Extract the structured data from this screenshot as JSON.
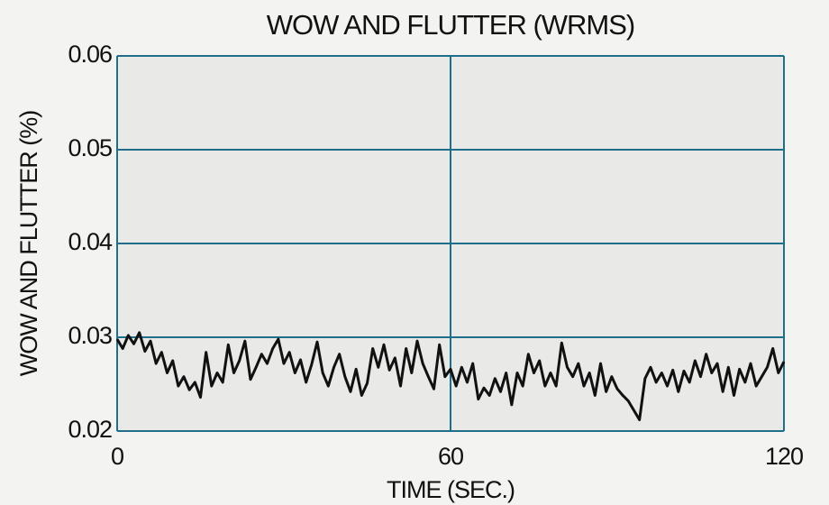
{
  "chart_data": {
    "type": "line",
    "title": "WOW AND FLUTTER (WRMS)",
    "xlabel": "TIME (SEC.)",
    "ylabel": "WOW AND FLUTTER (%)",
    "x": [
      0,
      1,
      2,
      3,
      4,
      5,
      6,
      7,
      8,
      9,
      10,
      11,
      12,
      13,
      14,
      15,
      16,
      17,
      18,
      19,
      20,
      21,
      22,
      23,
      24,
      25,
      26,
      27,
      28,
      29,
      30,
      31,
      32,
      33,
      34,
      35,
      36,
      37,
      38,
      39,
      40,
      41,
      42,
      43,
      44,
      45,
      46,
      47,
      48,
      49,
      50,
      51,
      52,
      53,
      54,
      55,
      56,
      57,
      58,
      59,
      60,
      61,
      62,
      63,
      64,
      65,
      66,
      67,
      68,
      69,
      70,
      71,
      72,
      73,
      74,
      75,
      76,
      77,
      78,
      79,
      80,
      81,
      82,
      83,
      84,
      85,
      86,
      87,
      88,
      89,
      90,
      91,
      92,
      93,
      94,
      95,
      96,
      97,
      98,
      99,
      100,
      101,
      102,
      103,
      104,
      105,
      106,
      107,
      108,
      109,
      110,
      111,
      112,
      113,
      114,
      115,
      116,
      117,
      118,
      119,
      120
    ],
    "series": [
      {
        "color": "#111111",
        "values": [
          0.0298,
          0.0288,
          0.0302,
          0.0293,
          0.0305,
          0.0285,
          0.0296,
          0.0272,
          0.0284,
          0.0262,
          0.0275,
          0.0248,
          0.0258,
          0.0244,
          0.0252,
          0.0236,
          0.0284,
          0.0248,
          0.0262,
          0.0252,
          0.0292,
          0.0262,
          0.0275,
          0.0296,
          0.0255,
          0.0268,
          0.0282,
          0.0272,
          0.0288,
          0.0298,
          0.0272,
          0.0284,
          0.0262,
          0.0276,
          0.0252,
          0.0271,
          0.0295,
          0.0262,
          0.0248,
          0.0268,
          0.0282,
          0.0258,
          0.0242,
          0.0266,
          0.0238,
          0.0251,
          0.0288,
          0.0268,
          0.0292,
          0.0265,
          0.0278,
          0.0248,
          0.0288,
          0.0262,
          0.0296,
          0.0272,
          0.0258,
          0.0245,
          0.0292,
          0.0258,
          0.0266,
          0.0248,
          0.0268,
          0.0252,
          0.0272,
          0.0234,
          0.0246,
          0.0238,
          0.0256,
          0.0242,
          0.0262,
          0.0228,
          0.0262,
          0.0248,
          0.0282,
          0.0262,
          0.0275,
          0.0248,
          0.0262,
          0.0248,
          0.0294,
          0.0268,
          0.0258,
          0.0272,
          0.0248,
          0.0262,
          0.0238,
          0.0272,
          0.0242,
          0.0258,
          0.0245,
          0.0238,
          0.0232,
          0.0222,
          0.0212,
          0.0256,
          0.0268,
          0.0252,
          0.0262,
          0.0248,
          0.0265,
          0.0242,
          0.0264,
          0.0252,
          0.0275,
          0.0258,
          0.0282,
          0.0262,
          0.0272,
          0.0242,
          0.0268,
          0.0238,
          0.0266,
          0.0252,
          0.0272,
          0.0248,
          0.0258,
          0.0268,
          0.0288,
          0.0262,
          0.0274
        ]
      }
    ],
    "xlim": [
      0,
      120
    ],
    "xticks": [
      0,
      60,
      120
    ],
    "ylim": [
      0.02,
      0.06
    ],
    "yticks": [
      0.02,
      0.03,
      0.04,
      0.05,
      0.06
    ],
    "grid": true,
    "grid_color": "#1f6f8b"
  }
}
